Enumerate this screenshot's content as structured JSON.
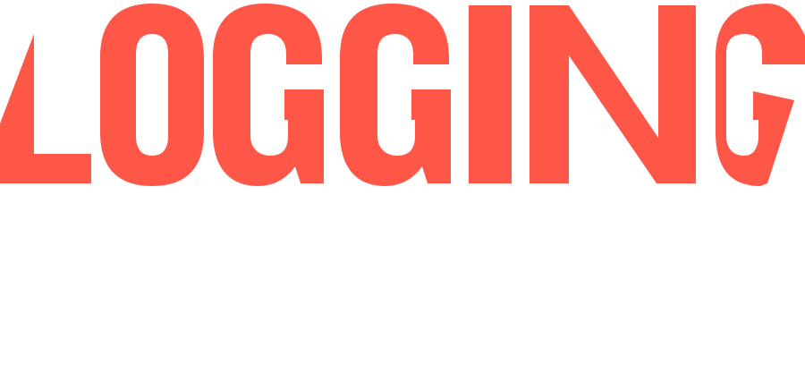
{
  "logo": {
    "text": "LOGGING",
    "letters": [
      "L",
      "O",
      "G",
      "G",
      "I",
      "N",
      "G"
    ],
    "color": "#ff5747",
    "background": "#ffffff"
  }
}
